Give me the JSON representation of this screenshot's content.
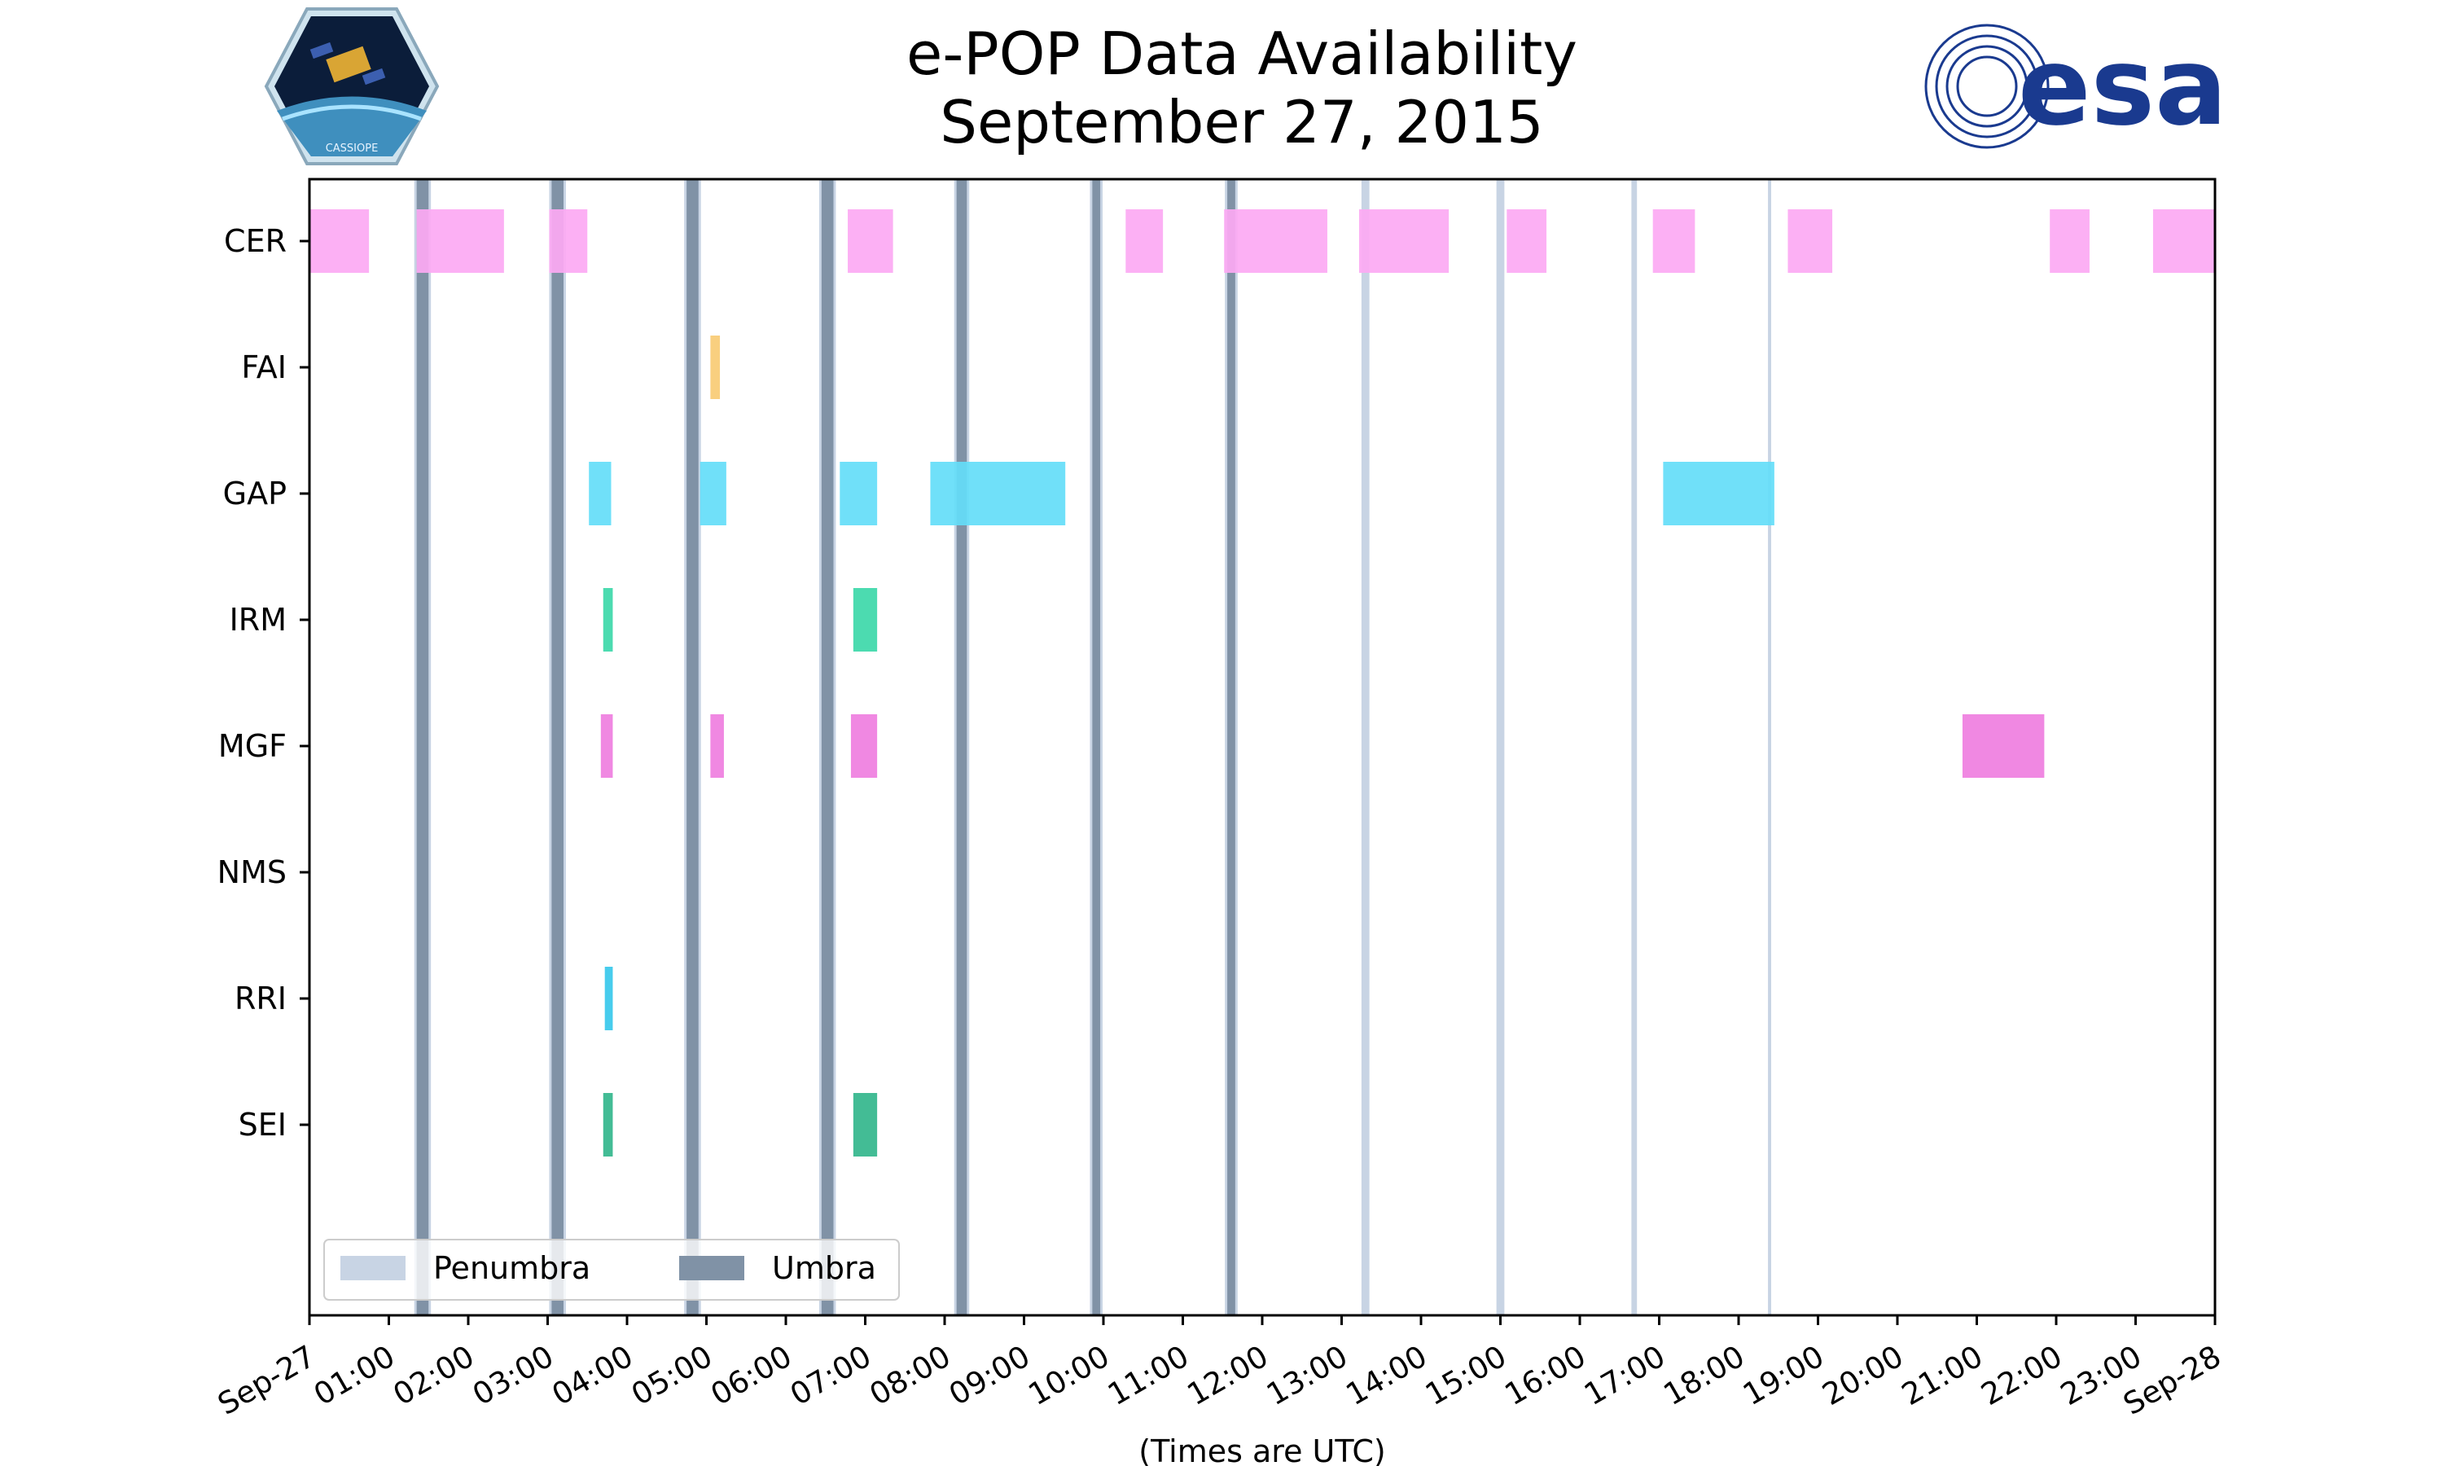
{
  "figure": {
    "title_line1": "e-POP Data Availability",
    "title_line2": "September 27, 2015"
  },
  "logos": {
    "left_text": "CASSIOPE",
    "right_text": "esa"
  },
  "colors": {
    "CER": "#fca9f3",
    "FAI": "#f9cb74",
    "GAP": "#64ddf8",
    "IRM": "#3dd8a9",
    "MGF": "#ef7ee0",
    "NMS": "#999999",
    "RRI": "#37c8ec",
    "SEI": "#33b68c",
    "penumbra": "#c8d4e4",
    "umbra": "#8092a6",
    "esa_blue": "#1a3a8f"
  },
  "chart_data": {
    "type": "timeline",
    "title": "e-POP Data Availability September 27, 2015",
    "xlabel": "(Times are UTC)",
    "ylabel": "",
    "x_range_hours": [
      0,
      24
    ],
    "x_ticks": [
      {
        "hour": 0,
        "label": "Sep-27"
      },
      {
        "hour": 1,
        "label": "01:00"
      },
      {
        "hour": 2,
        "label": "02:00"
      },
      {
        "hour": 3,
        "label": "03:00"
      },
      {
        "hour": 4,
        "label": "04:00"
      },
      {
        "hour": 5,
        "label": "05:00"
      },
      {
        "hour": 6,
        "label": "06:00"
      },
      {
        "hour": 7,
        "label": "07:00"
      },
      {
        "hour": 8,
        "label": "08:00"
      },
      {
        "hour": 9,
        "label": "09:00"
      },
      {
        "hour": 10,
        "label": "10:00"
      },
      {
        "hour": 11,
        "label": "11:00"
      },
      {
        "hour": 12,
        "label": "12:00"
      },
      {
        "hour": 13,
        "label": "13:00"
      },
      {
        "hour": 14,
        "label": "14:00"
      },
      {
        "hour": 15,
        "label": "15:00"
      },
      {
        "hour": 16,
        "label": "16:00"
      },
      {
        "hour": 17,
        "label": "17:00"
      },
      {
        "hour": 18,
        "label": "18:00"
      },
      {
        "hour": 19,
        "label": "19:00"
      },
      {
        "hour": 20,
        "label": "20:00"
      },
      {
        "hour": 21,
        "label": "21:00"
      },
      {
        "hour": 22,
        "label": "22:00"
      },
      {
        "hour": 23,
        "label": "23:00"
      },
      {
        "hour": 24,
        "label": "Sep-28"
      }
    ],
    "instruments": [
      {
        "name": "CER",
        "intervals": [
          [
            0.0,
            0.75
          ],
          [
            1.35,
            2.45
          ],
          [
            3.02,
            3.5
          ],
          [
            6.78,
            7.35
          ],
          [
            10.28,
            10.75
          ],
          [
            11.52,
            12.82
          ],
          [
            13.22,
            14.35
          ],
          [
            15.08,
            15.58
          ],
          [
            16.92,
            17.45
          ],
          [
            18.62,
            19.18
          ],
          [
            21.92,
            22.42
          ],
          [
            23.22,
            24.0
          ]
        ]
      },
      {
        "name": "FAI",
        "intervals": [
          [
            5.05,
            5.17
          ]
        ]
      },
      {
        "name": "GAP",
        "intervals": [
          [
            3.52,
            3.8
          ],
          [
            4.92,
            5.25
          ],
          [
            6.68,
            7.15
          ],
          [
            7.82,
            9.52
          ],
          [
            17.05,
            18.45
          ]
        ]
      },
      {
        "name": "IRM",
        "intervals": [
          [
            3.7,
            3.82
          ]
        ]
      },
      {
        "name": "MGF",
        "intervals": [
          [
            3.67,
            3.82
          ],
          [
            5.05,
            5.22
          ],
          [
            6.82,
            7.15
          ],
          [
            20.82,
            21.85
          ]
        ]
      },
      {
        "name": "NMS",
        "intervals": []
      },
      {
        "name": "RRI",
        "intervals": [
          [
            3.72,
            3.82
          ]
        ]
      },
      {
        "name": "SEI",
        "intervals": [
          [
            3.7,
            3.82
          ],
          [
            6.85,
            7.15
          ]
        ]
      }
    ],
    "extra_bars": [
      {
        "instrument": "IRM",
        "interval": [
          6.85,
          7.15
        ]
      }
    ],
    "umbra": [
      [
        1.35,
        1.5
      ],
      [
        3.05,
        3.2
      ],
      [
        4.75,
        4.9
      ],
      [
        6.45,
        6.6
      ],
      [
        8.15,
        8.28
      ],
      [
        9.86,
        9.96
      ],
      [
        11.56,
        11.66
      ]
    ],
    "penumbra": [
      [
        1.32,
        1.53
      ],
      [
        3.02,
        3.23
      ],
      [
        4.72,
        4.93
      ],
      [
        6.42,
        6.63
      ],
      [
        8.12,
        8.31
      ],
      [
        9.83,
        9.99
      ],
      [
        11.53,
        11.69
      ],
      [
        13.25,
        13.35
      ],
      [
        14.95,
        15.05
      ],
      [
        16.65,
        16.72
      ],
      [
        18.37,
        18.41
      ]
    ],
    "legend": {
      "location": "lower-left",
      "entries": [
        "Penumbra",
        "Umbra"
      ]
    },
    "grid": false
  }
}
